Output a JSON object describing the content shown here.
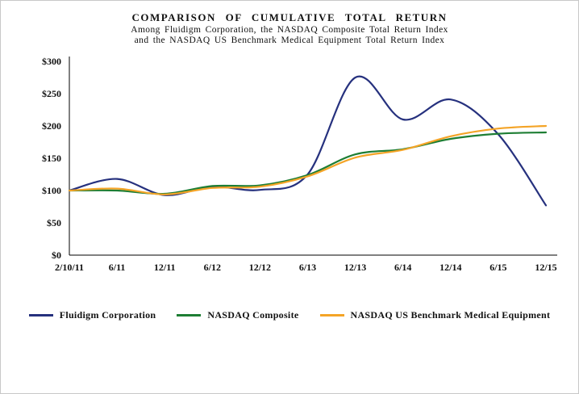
{
  "chart_data": {
    "type": "line",
    "title": "COMPARISON OF CUMULATIVE TOTAL RETURN",
    "subtitle_line1": "Among Fluidigm Corporation, the NASDAQ Composite Total Return Index",
    "subtitle_line2": "and the NASDAQ US Benchmark Medical Equipment Total Return Index",
    "x": [
      "2/10/11",
      "6/11",
      "12/11",
      "6/12",
      "12/12",
      "6/13",
      "12/13",
      "6/14",
      "12/14",
      "6/15",
      "12/15"
    ],
    "series": [
      {
        "name": "Fluidigm Corporation",
        "color": "#26317e",
        "values": [
          100,
          118,
          93,
          106,
          101,
          125,
          275,
          210,
          241,
          187,
          77
        ]
      },
      {
        "name": "NASDAQ Composite",
        "color": "#1e7e34",
        "values": [
          100,
          100,
          95,
          107,
          108,
          124,
          156,
          164,
          180,
          188,
          190
        ]
      },
      {
        "name": "NASDAQ US Benchmark Medical Equipment",
        "color": "#f4a427",
        "values": [
          100,
          103,
          94,
          104,
          106,
          122,
          151,
          163,
          184,
          196,
          200
        ]
      }
    ],
    "xlabel": "",
    "ylabel": "",
    "ylim": [
      0,
      300
    ],
    "ytick_step": 50,
    "ytick_labels": [
      "$0",
      "$50",
      "$100",
      "$150",
      "$200",
      "$250",
      "$300"
    ],
    "grid": false,
    "legend_position": "bottom"
  }
}
